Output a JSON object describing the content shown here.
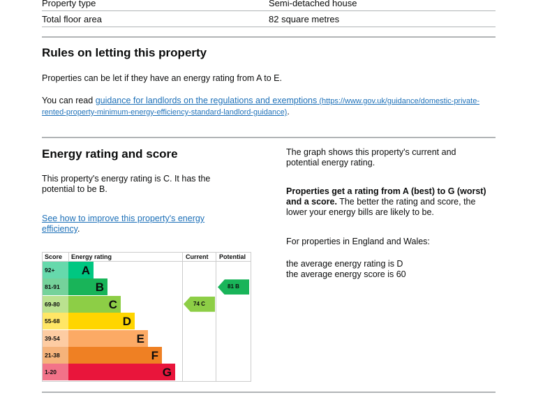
{
  "property_table": [
    {
      "label": "Property type",
      "value": "Semi-detached house"
    },
    {
      "label": "Total floor area",
      "value": "82 square metres"
    }
  ],
  "rules": {
    "heading": "Rules on letting this property",
    "para1": "Properties can be let if they have an energy rating from A to E.",
    "para2_prefix": "You can read ",
    "link_text": "guidance for landlords on the regulations and exemptions",
    "link_url_text": " (https://www.gov.uk/guidance/domestic-private-rented-property-minimum-energy-efficiency-standard-landlord-guidance)",
    "para2_suffix": "."
  },
  "energy": {
    "heading": "Energy rating and score",
    "para1": "This property's energy rating is C. It has the potential to be B.",
    "link": "See how to improve this property's energy efficiency",
    "link_suffix": ".",
    "right_p1": "The graph shows this property's current and potential energy rating.",
    "right_bold": "Properties get a rating from A (best) to G (worst) and a score.",
    "right_p2_rest": " The better the rating and score, the lower your energy bills are likely to be.",
    "right_p3": "For properties in England and Wales:",
    "right_p4a": "the average energy rating is D",
    "right_p4b": "the average energy score is 60"
  },
  "chart_data": {
    "type": "table",
    "headers": [
      "Score",
      "Energy rating",
      "Current",
      "Potential"
    ],
    "bands": [
      {
        "score": "92+",
        "letter": "A",
        "color": "#00c781",
        "score_bg": "#66d9ac"
      },
      {
        "score": "81-91",
        "letter": "B",
        "color": "#19b459",
        "score_bg": "#75d29b"
      },
      {
        "score": "69-80",
        "letter": "C",
        "color": "#8dce46",
        "score_bg": "#bbe290"
      },
      {
        "score": "55-68",
        "letter": "D",
        "color": "#ffd500",
        "score_bg": "#ffe666"
      },
      {
        "score": "39-54",
        "letter": "E",
        "color": "#fcaa65",
        "score_bg": "#fdcca3"
      },
      {
        "score": "21-38",
        "letter": "F",
        "color": "#ef8023",
        "score_bg": "#f5b37b"
      },
      {
        "score": "1-20",
        "letter": "G",
        "color": "#e9153b",
        "score_bg": "#f27389"
      }
    ],
    "current": {
      "label": "74 C",
      "score": 74,
      "band": "C",
      "color": "#8dce46"
    },
    "potential": {
      "label": "81 B",
      "score": 81,
      "band": "B",
      "color": "#19b459"
    }
  }
}
